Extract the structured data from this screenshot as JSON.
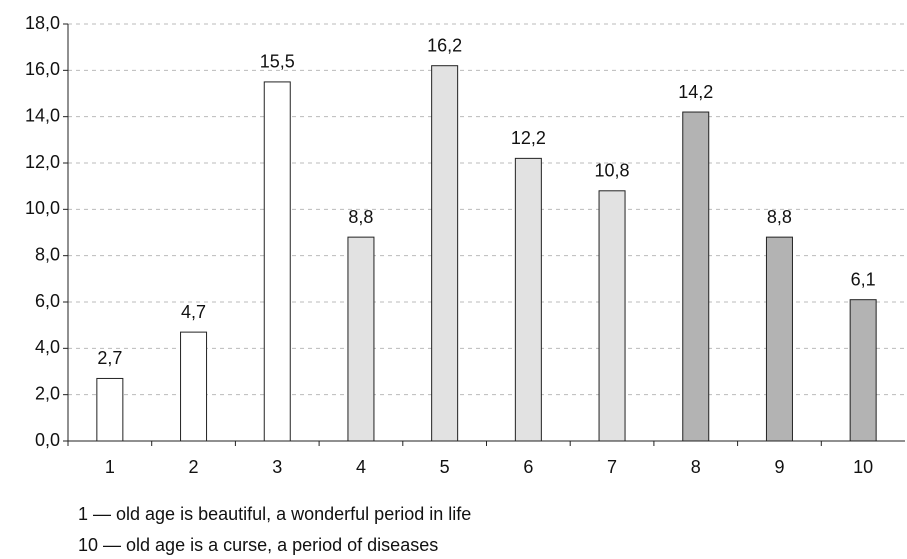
{
  "chart_data": {
    "type": "bar",
    "categories": [
      "1",
      "2",
      "3",
      "4",
      "5",
      "6",
      "7",
      "8",
      "9",
      "10"
    ],
    "values": [
      2.7,
      4.7,
      15.5,
      8.8,
      16.2,
      12.2,
      10.8,
      14.2,
      8.8,
      6.1
    ],
    "value_labels": [
      "2,7",
      "4,7",
      "15,5",
      "8,8",
      "16,2",
      "12,2",
      "10,8",
      "14,2",
      "8,8",
      "6,1"
    ],
    "colors": [
      "#ffffff",
      "#ffffff",
      "#ffffff",
      "#e2e2e2",
      "#e2e2e2",
      "#e2e2e2",
      "#e2e2e2",
      "#b3b3b3",
      "#b3b3b3",
      "#b3b3b3"
    ],
    "ylim": [
      0,
      18
    ],
    "yticks": [
      {
        "value": 0,
        "label": "0,0"
      },
      {
        "value": 2,
        "label": "2,0"
      },
      {
        "value": 4,
        "label": "4,0"
      },
      {
        "value": 6,
        "label": "6,0"
      },
      {
        "value": 8,
        "label": "8,0"
      },
      {
        "value": 10,
        "label": "10,0"
      },
      {
        "value": 12,
        "label": "12,0"
      },
      {
        "value": 14,
        "label": "14,0"
      },
      {
        "value": 16,
        "label": "16,0"
      },
      {
        "value": 18,
        "label": "18,0"
      }
    ],
    "grid": true,
    "annotations": [
      "1 — old age is beautiful, a wonderful period in life",
      "10 — old age is a curse, a period of diseases"
    ]
  }
}
